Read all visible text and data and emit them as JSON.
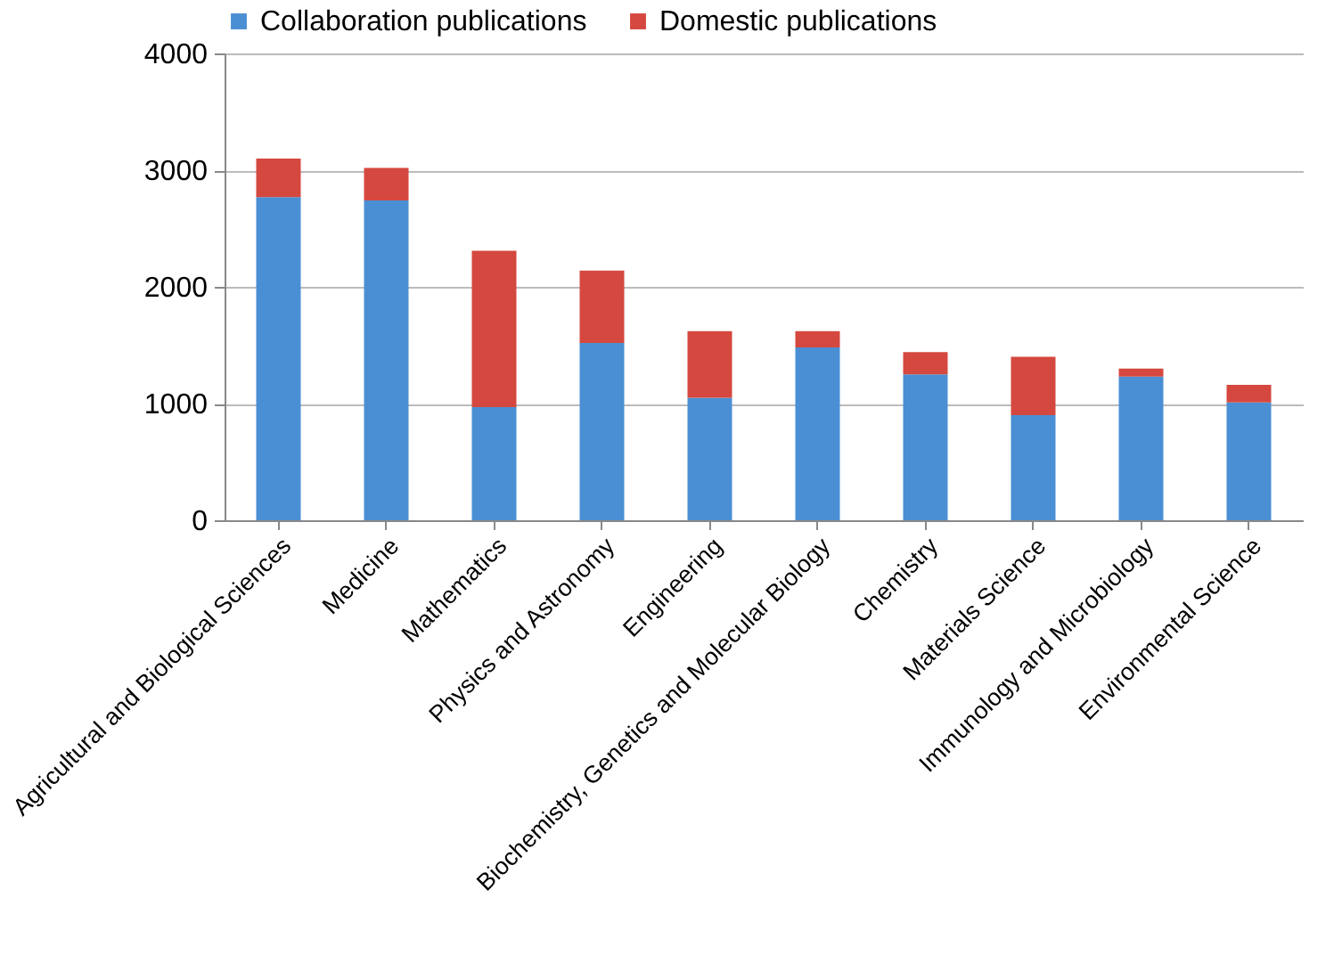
{
  "chart_data": {
    "type": "bar",
    "stacked": true,
    "categories": [
      "Agricultural and Biological Sciences",
      "Medicine",
      "Mathematics",
      "Physics and Astronomy",
      "Engineering",
      "Biochemistry, Genetics and Molecular Biology",
      "Chemistry",
      "Materials Science",
      "Immunology and Microbiology",
      "Environmental Science"
    ],
    "series": [
      {
        "name": "Collaboration publications",
        "color": "#4a8fd4",
        "values": [
          2770,
          2740,
          970,
          1520,
          1050,
          1480,
          1250,
          900,
          1230,
          1010
        ]
      },
      {
        "name": "Domestic publications",
        "color": "#d5483f",
        "values": [
          330,
          280,
          1340,
          620,
          570,
          140,
          190,
          500,
          70,
          150
        ]
      }
    ],
    "ylim": [
      0,
      4000
    ],
    "yticks": [
      0,
      1000,
      2000,
      3000,
      4000
    ],
    "grid": "y",
    "legend": "top"
  }
}
